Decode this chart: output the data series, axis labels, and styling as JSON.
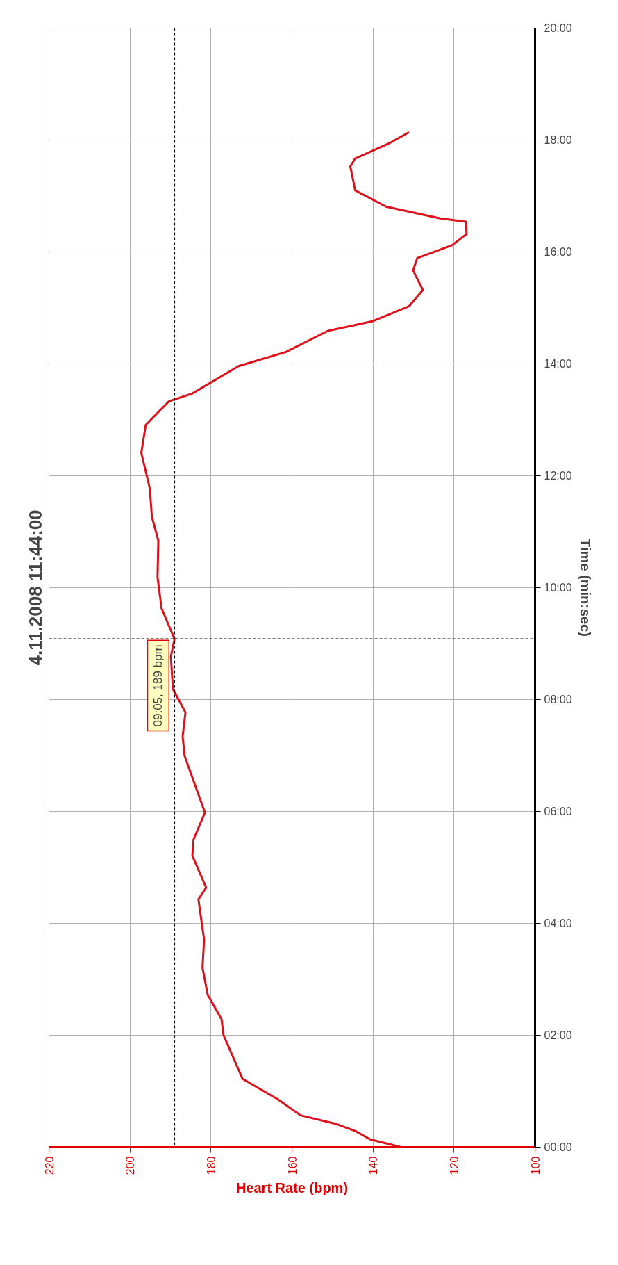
{
  "chart_data": {
    "type": "line",
    "orientation": "horizontal",
    "title": "4.11.2008 11:44:00",
    "xlabel": "Heart Rate (bpm)",
    "ylabel": "Time (min:sec)",
    "xlim": [
      220,
      100
    ],
    "xticks": [
      220,
      200,
      180,
      160,
      140,
      120,
      100
    ],
    "ylim": [
      0,
      20
    ],
    "yticks": [
      {
        "value": 0,
        "label": "00:00"
      },
      {
        "value": 2,
        "label": "02:00"
      },
      {
        "value": 4,
        "label": "04:00"
      },
      {
        "value": 6,
        "label": "06:00"
      },
      {
        "value": 8,
        "label": "08:00"
      },
      {
        "value": 10,
        "label": "10:00"
      },
      {
        "value": 12,
        "label": "12:00"
      },
      {
        "value": 14,
        "label": "14:00"
      },
      {
        "value": 16,
        "label": "16:00"
      },
      {
        "value": 18,
        "label": "18:00"
      },
      {
        "value": 20,
        "label": "20:00"
      }
    ],
    "grid": true,
    "marker": "none",
    "line_style": "solid",
    "series": [
      {
        "color": "#e0101a",
        "x": [
          0,
          0.14,
          0.29,
          0.42,
          0.57,
          0.86,
          1.22,
          2.0,
          2.29,
          2.72,
          3.21,
          3.71,
          4.43,
          4.64,
          5.21,
          5.5,
          5.98,
          6.99,
          7.34,
          7.77,
          8.19,
          8.77,
          9.083,
          9.63,
          10.19,
          10.84,
          11.27,
          11.77,
          12.41,
          12.91,
          13.33,
          13.47,
          13.96,
          14.21,
          14.59,
          14.76,
          15.03,
          15.32,
          15.67,
          15.89,
          16.12,
          16.32,
          16.54,
          16.6,
          16.81,
          17.1,
          17.53,
          17.67,
          17.95,
          18.14
        ],
        "values": [
          133,
          140.7,
          144.4,
          149.3,
          157.9,
          163.6,
          172.2,
          176.9,
          177.4,
          180.8,
          182.1,
          181.7,
          183.1,
          181.2,
          184.6,
          184.3,
          181.5,
          186.5,
          187,
          186.3,
          189.4,
          189.9,
          189,
          192.2,
          193.2,
          193,
          194.6,
          195.1,
          197.2,
          196.1,
          190.4,
          184.6,
          173.2,
          161.6,
          151.1,
          140.2,
          131.1,
          127.7,
          130.1,
          129.1,
          120.5,
          116.9,
          117.1,
          123.4,
          136.8,
          144.4,
          145.6,
          144.4,
          135.8,
          131.1
        ]
      }
    ],
    "ref_lines": [
      {
        "axis": "x",
        "value": 189,
        "color": "#000000",
        "line_style": "dashed"
      },
      {
        "axis": "y",
        "value": 9.083,
        "color": "#000000",
        "line_style": "dashed"
      }
    ],
    "annotations": [
      {
        "text": "09:05, 189 bpm",
        "x": 189,
        "y": 9.083
      }
    ]
  }
}
